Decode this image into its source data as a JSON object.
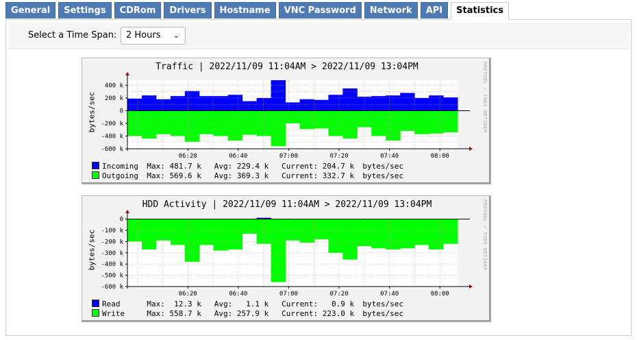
{
  "tabs": [
    "General",
    "Settings",
    "CDRom",
    "Drivers",
    "Hostname",
    "VNC Password",
    "Network",
    "API",
    "Statistics"
  ],
  "active_tab": "Statistics",
  "time_span": {
    "label": "Select a Time Span:",
    "value": "2 Hours"
  },
  "graphs": [
    {
      "title": "Traffic | 2022/11/09 11:04AM > 2022/11/09 13:04PM",
      "watermark": "RRDTOOL / TOBI OETIKER",
      "ylabel": "bytes/sec",
      "yticks": [
        "400 k",
        "200 k",
        "0",
        "-200 k",
        "-400 k",
        "-600 k"
      ],
      "xticks": [
        "06:20",
        "06:40",
        "07:00",
        "07:20",
        "07:40",
        "08:00"
      ],
      "legend": [
        {
          "name": "Incoming",
          "color": "#0000ff",
          "max": "Max: 481.7 k",
          "avg": "Avg: 229.4 k",
          "cur": "Current: 204.7 k",
          "unit": "bytes/sec"
        },
        {
          "name": "Outgoing",
          "color": "#00ff00",
          "max": "Max: 569.6 k",
          "avg": "Avg: 369.3 k",
          "cur": "Current: 332.7 k",
          "unit": "bytes/sec"
        }
      ]
    },
    {
      "title": "HDD Activity | 2022/11/09 11:04AM > 2022/11/09 13:04PM",
      "watermark": "RRDTOOL / TOBI OETIKER",
      "ylabel": "bytes/sec",
      "yticks": [
        "0",
        "-100 k",
        "-200 k",
        "-300 k",
        "-400 k",
        "-500 k",
        "-600 k"
      ],
      "xticks": [
        "06:20",
        "06:40",
        "07:00",
        "07:20",
        "07:40",
        "08:00"
      ],
      "legend": [
        {
          "name": "Read",
          "color": "#0000ff",
          "max": "Max:  12.3 k",
          "avg": "Avg:   1.1 k",
          "cur": "Current:   0.9 k",
          "unit": "bytes/sec"
        },
        {
          "name": "Write",
          "color": "#00ff00",
          "max": "Max: 558.7 k",
          "avg": "Avg: 257.9 k",
          "cur": "Current: 223.0 k",
          "unit": "bytes/sec"
        }
      ]
    }
  ],
  "chart_data": [
    {
      "type": "area",
      "title": "Traffic | 2022/11/09 11:04AM > 2022/11/09 13:04PM",
      "ylabel": "bytes/sec",
      "ylim": [
        -600,
        480
      ],
      "series": [
        {
          "name": "Incoming",
          "values": [
            190,
            240,
            180,
            230,
            310,
            230,
            230,
            250,
            150,
            200,
            480,
            130,
            180,
            170,
            250,
            350,
            220,
            230,
            240,
            280,
            200,
            240,
            210
          ]
        },
        {
          "name": "Outgoing",
          "values": [
            -400,
            -440,
            -370,
            -400,
            -490,
            -370,
            -400,
            -470,
            -380,
            -400,
            -560,
            -200,
            -290,
            -280,
            -400,
            -440,
            -260,
            -400,
            -470,
            -320,
            -370,
            -360,
            -340
          ]
        }
      ]
    },
    {
      "type": "area",
      "title": "HDD Activity | 2022/11/09 11:04AM > 2022/11/09 13:04PM",
      "ylabel": "bytes/sec",
      "ylim": [
        -600,
        0
      ],
      "series": [
        {
          "name": "Read",
          "values": [
            0,
            0,
            0,
            0,
            0,
            0,
            0,
            0,
            0,
            12,
            0,
            0,
            0,
            0,
            0,
            0,
            0,
            0,
            0,
            0,
            0,
            0,
            0
          ]
        },
        {
          "name": "Write",
          "values": [
            -200,
            -270,
            -190,
            -230,
            -380,
            -230,
            -280,
            -270,
            -130,
            -220,
            -560,
            -190,
            -210,
            -180,
            -300,
            -360,
            -240,
            -260,
            -270,
            -260,
            -230,
            -270,
            -220
          ]
        }
      ]
    }
  ]
}
